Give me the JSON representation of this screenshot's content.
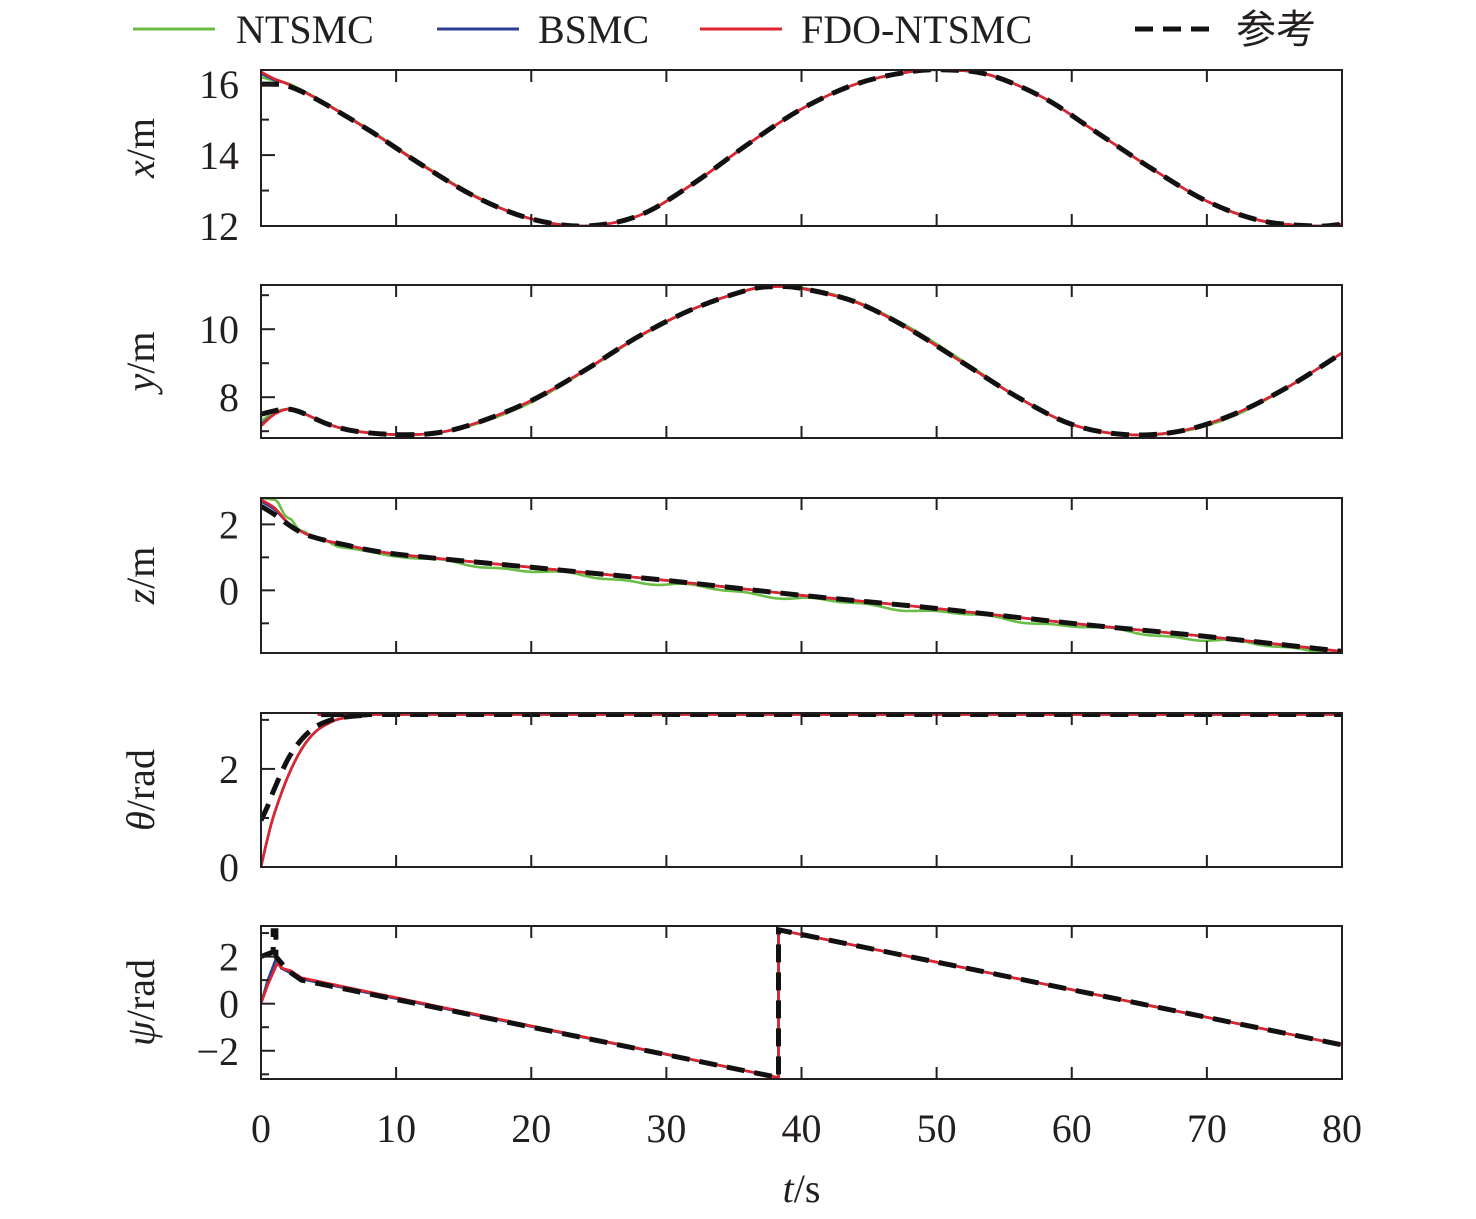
{
  "chart_data": {
    "type": "line",
    "legend": {
      "position": "top",
      "entries": [
        {
          "label": "NTSMC",
          "color": "#6abd45",
          "style": "solid"
        },
        {
          "label": "BSMC",
          "color": "#2e3f93",
          "style": "solid"
        },
        {
          "label": "FDO-NTSMC",
          "color": "#e0232f",
          "style": "solid"
        },
        {
          "label": "参考",
          "color": "#111111",
          "style": "dashed"
        }
      ]
    },
    "xlabel": {
      "var": "t",
      "unit": "/s"
    },
    "xlim": [
      0,
      80
    ],
    "xticks": [
      0,
      10,
      20,
      30,
      40,
      50,
      60,
      70,
      80
    ],
    "xticklabels": [
      "0",
      "10",
      "20",
      "30",
      "40",
      "50",
      "60",
      "70",
      "80"
    ],
    "grid": false,
    "panels": [
      {
        "id": "x",
        "ylabel": {
          "var": "x",
          "unit": "/m"
        },
        "ylim": [
          12,
          16.4
        ],
        "yticks": [
          12,
          14,
          16
        ],
        "yticklabels": [
          "12",
          "14",
          "16"
        ],
        "yminor": [
          13,
          15
        ],
        "reference": {
          "t": [
            0,
            1,
            2,
            4,
            8,
            12,
            16,
            20,
            24,
            28,
            32,
            36,
            40,
            44,
            48,
            51,
            54,
            58,
            62,
            66,
            70,
            74,
            78,
            80
          ],
          "v": [
            16.0,
            16.0,
            15.95,
            15.6,
            14.7,
            13.7,
            12.8,
            12.2,
            12.0,
            12.3,
            13.2,
            14.3,
            15.3,
            16.0,
            16.35,
            16.4,
            16.25,
            15.6,
            14.6,
            13.6,
            12.7,
            12.15,
            12.0,
            12.05
          ]
        },
        "red": {
          "t": [
            0,
            1,
            2,
            4,
            8,
            12,
            16,
            20,
            24,
            28,
            32,
            36,
            40,
            44,
            48,
            51,
            54,
            58,
            62,
            66,
            70,
            74,
            78,
            80
          ],
          "v": [
            16.35,
            16.15,
            16.0,
            15.62,
            14.7,
            13.7,
            12.8,
            12.2,
            12.0,
            12.3,
            13.2,
            14.3,
            15.3,
            16.0,
            16.35,
            16.4,
            16.25,
            15.6,
            14.6,
            13.6,
            12.7,
            12.15,
            12.0,
            12.05
          ]
        },
        "green": {
          "t": [
            0,
            1,
            2,
            4,
            8,
            12,
            16,
            20,
            24,
            28,
            32,
            36,
            40,
            44,
            48,
            51,
            54,
            58,
            62,
            66,
            70,
            74,
            78,
            80
          ],
          "v": [
            16.2,
            16.1,
            16.02,
            15.63,
            14.72,
            13.72,
            12.82,
            12.2,
            12.0,
            12.3,
            13.2,
            14.3,
            15.3,
            16.0,
            16.35,
            16.4,
            16.25,
            15.6,
            14.6,
            13.6,
            12.7,
            12.15,
            12.0,
            12.05
          ]
        },
        "blue": {
          "t": [
            0,
            1,
            2,
            4,
            8,
            12,
            16,
            20,
            24,
            28,
            32,
            36,
            40,
            44,
            48,
            51,
            54,
            58,
            62,
            66,
            70,
            74,
            78,
            80
          ],
          "v": [
            16.3,
            16.12,
            16.0,
            15.62,
            14.7,
            13.7,
            12.8,
            12.2,
            12.0,
            12.3,
            13.2,
            14.3,
            15.3,
            16.0,
            16.35,
            16.4,
            16.25,
            15.6,
            14.6,
            13.6,
            12.7,
            12.15,
            12.0,
            12.05
          ]
        }
      },
      {
        "id": "y",
        "ylabel": {
          "var": "y",
          "unit": "/m"
        },
        "ylim": [
          6.8,
          11.3
        ],
        "yticks": [
          8,
          10
        ],
        "yticklabels": [
          "8",
          "10"
        ],
        "yminor": [
          7,
          9,
          11
        ],
        "reference": {
          "t": [
            0,
            1,
            2,
            3,
            5,
            7,
            10,
            13,
            16,
            20,
            24,
            28,
            32,
            36,
            38,
            40,
            44,
            48,
            52,
            56,
            60,
            64,
            68,
            72,
            76,
            80
          ],
          "v": [
            7.5,
            7.6,
            7.65,
            7.55,
            7.2,
            7.0,
            6.9,
            6.95,
            7.25,
            7.9,
            8.8,
            9.8,
            10.6,
            11.15,
            11.25,
            11.2,
            10.8,
            10.0,
            9.0,
            8.0,
            7.2,
            6.9,
            7.0,
            7.5,
            8.3,
            9.3
          ]
        },
        "red": {
          "t": [
            0,
            1,
            2,
            3,
            5,
            7,
            10,
            13,
            16,
            20,
            24,
            28,
            32,
            36,
            38,
            40,
            44,
            48,
            52,
            56,
            60,
            64,
            68,
            72,
            76,
            80
          ],
          "v": [
            7.15,
            7.5,
            7.65,
            7.55,
            7.2,
            7.0,
            6.9,
            6.95,
            7.25,
            7.9,
            8.8,
            9.8,
            10.6,
            11.15,
            11.25,
            11.2,
            10.8,
            10.0,
            9.0,
            8.0,
            7.2,
            6.9,
            7.0,
            7.5,
            8.3,
            9.3
          ]
        },
        "green": {
          "t": [
            0,
            1,
            2,
            3,
            5,
            7,
            10,
            13,
            16,
            20,
            24,
            28,
            32,
            36,
            38,
            40,
            44,
            48,
            52,
            56,
            60,
            64,
            68,
            72,
            76,
            80
          ],
          "v": [
            7.3,
            7.55,
            7.65,
            7.55,
            7.2,
            7.0,
            6.9,
            6.95,
            7.22,
            7.85,
            8.78,
            9.78,
            10.6,
            11.15,
            11.25,
            11.22,
            10.82,
            10.05,
            9.05,
            8.0,
            7.2,
            6.9,
            6.98,
            7.45,
            8.3,
            9.3
          ]
        },
        "blue": {
          "t": [
            0,
            1,
            2,
            3,
            5,
            7,
            10,
            13,
            16,
            20,
            24,
            28,
            32,
            36,
            38,
            40,
            44,
            48,
            52,
            56,
            60,
            64,
            68,
            72,
            76,
            80
          ],
          "v": [
            7.2,
            7.5,
            7.65,
            7.55,
            7.2,
            7.0,
            6.9,
            6.95,
            7.25,
            7.9,
            8.8,
            9.8,
            10.6,
            11.15,
            11.25,
            11.2,
            10.8,
            10.0,
            9.0,
            8.0,
            7.2,
            6.9,
            7.0,
            7.5,
            8.3,
            9.3
          ]
        }
      },
      {
        "id": "z",
        "ylabel": {
          "var": "z",
          "unit": "/m"
        },
        "ylim": [
          -1.9,
          2.8
        ],
        "yticks": [
          0,
          2
        ],
        "yticklabels": [
          "0",
          "2"
        ],
        "yminor": [
          -1,
          1
        ],
        "reference": {
          "t": [
            0,
            1,
            2,
            3,
            4,
            6,
            10,
            20,
            30,
            40,
            50,
            60,
            70,
            80
          ],
          "v": [
            2.55,
            2.3,
            2.0,
            1.75,
            1.6,
            1.4,
            1.1,
            0.7,
            0.3,
            -0.15,
            -0.55,
            -1.0,
            -1.4,
            -1.85
          ]
        },
        "red": {
          "t": [
            0,
            1,
            2,
            3,
            4,
            6,
            10,
            20,
            30,
            40,
            50,
            60,
            70,
            80
          ],
          "v": [
            2.75,
            2.5,
            2.05,
            1.78,
            1.6,
            1.4,
            1.1,
            0.7,
            0.3,
            -0.15,
            -0.55,
            -1.0,
            -1.4,
            -1.85
          ]
        },
        "green": {
          "t": [
            0,
            1,
            2,
            3,
            4,
            6,
            10,
            20,
            30,
            40,
            50,
            60,
            70,
            80
          ],
          "v": [
            2.8,
            2.75,
            2.2,
            1.8,
            1.6,
            1.35,
            1.05,
            0.62,
            0.22,
            -0.22,
            -0.62,
            -1.05,
            -1.47,
            -1.85
          ]
        },
        "blue": {
          "t": [
            0,
            1,
            2,
            3,
            4,
            6,
            10,
            20,
            30,
            40,
            50,
            60,
            70,
            80
          ],
          "v": [
            2.7,
            2.45,
            2.05,
            1.78,
            1.6,
            1.4,
            1.1,
            0.7,
            0.3,
            -0.15,
            -0.55,
            -1.0,
            -1.4,
            -1.85
          ]
        },
        "green_ripple": 4.5
      },
      {
        "id": "theta",
        "ylabel": {
          "var": "θ",
          "unit": "/rad"
        },
        "ylim": [
          0,
          3.14
        ],
        "yticks": [
          0,
          2
        ],
        "yticklabels": [
          "0",
          "2"
        ],
        "yminor": [
          1,
          3
        ],
        "reference": {
          "t": [
            0,
            0.5,
            1,
            2,
            3,
            4,
            5,
            6,
            8,
            10,
            80
          ],
          "v": [
            0.95,
            1.25,
            1.6,
            2.2,
            2.6,
            2.85,
            2.98,
            3.05,
            3.1,
            3.11,
            3.11
          ]
        },
        "red": {
          "t": [
            0,
            0.5,
            1,
            2,
            3,
            4,
            5,
            6,
            8,
            10,
            80
          ],
          "v": [
            0.0,
            0.6,
            1.1,
            1.85,
            2.4,
            2.75,
            2.93,
            3.03,
            3.09,
            3.11,
            3.11
          ]
        },
        "green": {
          "t": [
            0,
            0.5,
            1,
            2,
            3,
            4,
            5,
            6,
            8,
            10,
            80
          ],
          "v": [
            0.0,
            0.6,
            1.1,
            1.85,
            2.4,
            2.75,
            2.93,
            3.03,
            3.09,
            3.11,
            3.11
          ]
        },
        "blue": {
          "t": [
            0,
            0.5,
            1,
            2,
            3,
            4,
            5,
            6,
            8,
            10,
            80
          ],
          "v": [
            0.0,
            0.6,
            1.1,
            1.85,
            2.4,
            2.75,
            2.93,
            3.03,
            3.09,
            3.11,
            3.11
          ]
        }
      },
      {
        "id": "psi",
        "ylabel": {
          "var": "ψ",
          "unit": "/rad"
        },
        "ylim": [
          -3.2,
          3.3
        ],
        "yticks": [
          -2,
          0,
          2
        ],
        "yticklabels": [
          "−2",
          "0",
          "2"
        ],
        "yminor": [
          -3,
          -1,
          1,
          3
        ],
        "reference": {
          "t": [
            0,
            0.9,
            0.9,
            1.1,
            1.1,
            2,
            3,
            38.3,
            38.3,
            80
          ],
          "v": [
            2.0,
            2.2,
            3.1,
            3.1,
            2.0,
            1.4,
            1.0,
            -3.14,
            3.14,
            -1.75
          ]
        },
        "red": {
          "t": [
            0,
            0.5,
            1.2,
            1.6,
            2.2,
            3,
            38.3,
            38.3,
            80
          ],
          "v": [
            0.0,
            0.8,
            1.7,
            1.5,
            1.4,
            1.1,
            -3.14,
            3.14,
            -1.75
          ]
        },
        "green": {
          "t": [
            0,
            0.5,
            1.2,
            1.6,
            2.2,
            3,
            38.3,
            38.3,
            80
          ],
          "v": [
            0.0,
            0.9,
            1.8,
            1.5,
            1.35,
            1.05,
            -3.14,
            3.14,
            -1.75
          ]
        },
        "blue": {
          "t": [
            0,
            0.5,
            1.1,
            1.5,
            2.2,
            3,
            38.3,
            38.3,
            80
          ],
          "v": [
            0.0,
            1.0,
            1.9,
            1.5,
            1.3,
            1.05,
            -3.14,
            3.14,
            -1.75
          ]
        }
      }
    ]
  }
}
